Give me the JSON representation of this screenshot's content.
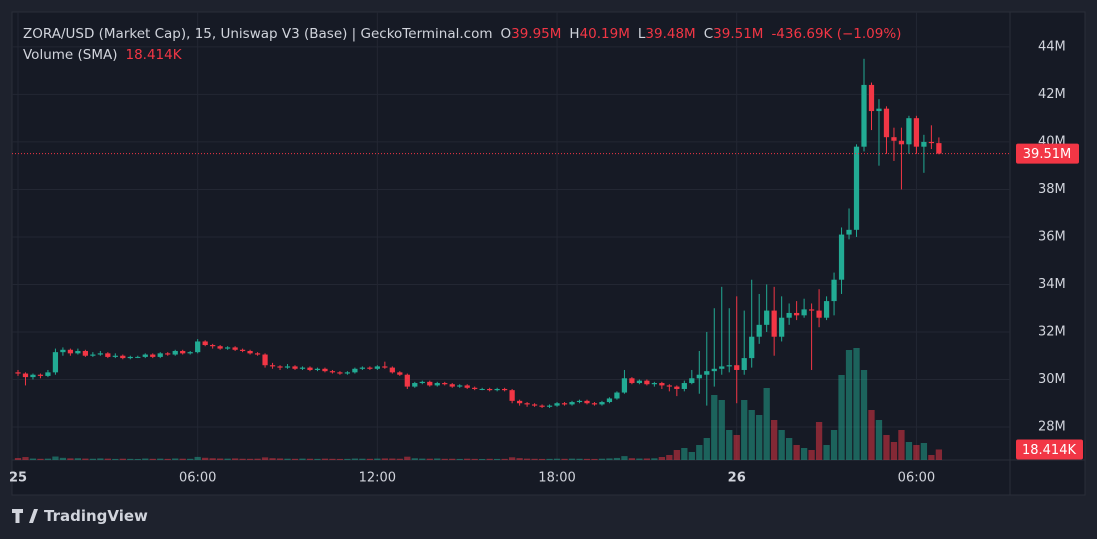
{
  "header": {
    "symbol": "ZORA/USD (Market Cap), 15, Uniswap V3 (Base) | GeckoTerminal.com",
    "ohlc": [
      {
        "key": "O",
        "label": "39.95M"
      },
      {
        "key": "H",
        "label": "40.19M"
      },
      {
        "key": "L",
        "label": "39.48M"
      },
      {
        "key": "C",
        "label": "39.51M"
      }
    ],
    "change": "-436.69K (−1.09%)",
    "volume_title": "Volume (SMA)"
  },
  "footer": {
    "brand": "TradingView"
  },
  "chart_data": {
    "type": "candlestick",
    "xlim": [
      -0.8,
      132.5
    ],
    "xticks": [
      {
        "value": 0,
        "label": "25"
      },
      {
        "value": 24,
        "label": "06:00"
      },
      {
        "value": 48,
        "label": "12:00"
      },
      {
        "value": 72,
        "label": "18:00"
      },
      {
        "value": 96,
        "label": "26"
      },
      {
        "value": 120,
        "label": "06:00"
      }
    ],
    "ylim": [
      26.61,
      45.47
    ],
    "yticks": [
      {
        "value": 28,
        "label": "28M"
      },
      {
        "value": 30,
        "label": "30M"
      },
      {
        "value": 32,
        "label": "32M"
      },
      {
        "value": 34,
        "label": "34M"
      },
      {
        "value": 36,
        "label": "36M"
      },
      {
        "value": 38,
        "label": "38M"
      },
      {
        "value": 40,
        "label": "40M"
      },
      {
        "value": 42,
        "label": "42M"
      },
      {
        "value": 44,
        "label": "44M"
      }
    ],
    "vlim": [
      0,
      420000
    ],
    "grid": true,
    "up_color": "#22ab94",
    "down_color": "#f23645",
    "open": [
      30.3,
      30.25,
      30.1,
      30.2,
      30.15,
      30.3,
      31.15,
      31.25,
      31.1,
      31.2,
      31.0,
      31.05,
      31.1,
      30.95,
      31.0,
      30.9,
      30.95,
      30.95,
      31.05,
      30.95,
      31.1,
      31.05,
      31.2,
      31.1,
      31.15,
      31.6,
      31.45,
      31.4,
      31.3,
      31.35,
      31.25,
      31.2,
      31.1,
      31.05,
      30.6,
      30.55,
      30.5,
      30.55,
      30.45,
      30.5,
      30.4,
      30.45,
      30.35,
      30.3,
      30.25,
      30.3,
      30.45,
      30.5,
      30.45,
      30.55,
      30.5,
      30.3,
      30.2,
      29.7,
      29.85,
      29.9,
      29.75,
      29.85,
      29.8,
      29.7,
      29.75,
      29.65,
      29.6,
      29.6,
      29.55,
      29.6,
      29.55,
      29.1,
      29.0,
      28.95,
      28.9,
      28.85,
      28.9,
      29.0,
      28.95,
      29.05,
      29.1,
      29.0,
      28.95,
      29.05,
      29.2,
      29.45,
      30.05,
      29.85,
      29.95,
      29.8,
      29.85,
      29.75,
      29.7,
      29.6,
      29.85,
      30.05,
      30.2,
      30.35,
      30.45,
      30.55,
      30.6,
      30.4,
      30.9,
      31.8,
      32.3,
      32.9,
      31.8,
      32.6,
      32.8,
      32.7,
      32.95,
      32.9,
      32.6,
      33.3,
      34.2,
      36.1,
      36.3,
      39.8,
      42.4,
      41.3,
      41.4,
      40.2,
      40.05,
      39.9,
      41.0,
      39.8,
      40.0,
      39.95
    ],
    "high": [
      30.4,
      30.3,
      30.25,
      30.25,
      30.4,
      31.3,
      31.35,
      31.3,
      31.3,
      31.25,
      31.15,
      31.2,
      31.15,
      31.1,
      31.05,
      31.0,
      31.0,
      31.1,
      31.1,
      31.15,
      31.15,
      31.25,
      31.25,
      31.2,
      31.7,
      31.65,
      31.5,
      31.45,
      31.4,
      31.4,
      31.3,
      31.25,
      31.15,
      31.1,
      30.7,
      30.6,
      30.65,
      30.6,
      30.55,
      30.55,
      30.5,
      30.5,
      30.4,
      30.35,
      30.35,
      30.5,
      30.55,
      30.55,
      30.6,
      30.75,
      30.55,
      30.35,
      30.25,
      29.9,
      29.95,
      29.95,
      29.9,
      29.9,
      29.85,
      29.8,
      29.8,
      29.7,
      29.65,
      29.65,
      29.65,
      29.65,
      29.6,
      29.15,
      29.05,
      29.0,
      28.95,
      28.95,
      29.05,
      29.05,
      29.1,
      29.15,
      29.15,
      29.05,
      29.1,
      29.25,
      29.5,
      30.4,
      30.1,
      30.0,
      30.0,
      29.9,
      29.9,
      29.8,
      29.75,
      29.95,
      30.4,
      31.2,
      32.0,
      33.0,
      33.9,
      33.0,
      33.5,
      32.9,
      34.2,
      33.6,
      34.0,
      33.9,
      33.5,
      33.2,
      33.3,
      33.4,
      33.2,
      33.8,
      33.5,
      34.5,
      36.4,
      37.2,
      39.9,
      43.5,
      42.5,
      41.8,
      41.5,
      40.6,
      40.6,
      41.1,
      41.1,
      40.3,
      40.7,
      40.19
    ],
    "low": [
      30.15,
      29.75,
      30.0,
      30.05,
      30.1,
      30.2,
      31.0,
      31.0,
      31.05,
      30.95,
      30.95,
      31.0,
      30.9,
      30.9,
      30.85,
      30.85,
      30.9,
      30.9,
      30.9,
      30.9,
      31.0,
      31.0,
      31.05,
      31.05,
      31.1,
      31.4,
      31.3,
      31.25,
      31.25,
      31.2,
      31.15,
      31.05,
      31.0,
      30.5,
      30.45,
      30.4,
      30.45,
      30.4,
      30.4,
      30.35,
      30.35,
      30.3,
      30.25,
      30.2,
      30.2,
      30.25,
      30.4,
      30.4,
      30.4,
      30.45,
      30.25,
      30.15,
      29.6,
      29.65,
      29.8,
      29.7,
      29.7,
      29.75,
      29.65,
      29.65,
      29.6,
      29.55,
      29.55,
      29.5,
      29.5,
      29.5,
      29.0,
      28.9,
      28.85,
      28.85,
      28.8,
      28.8,
      28.85,
      28.9,
      28.9,
      29.0,
      28.95,
      28.9,
      28.9,
      29.0,
      29.15,
      29.4,
      29.8,
      29.8,
      29.75,
      29.7,
      29.6,
      29.5,
      29.3,
      29.5,
      29.8,
      29.4,
      28.9,
      29.7,
      30.2,
      30.3,
      29.0,
      30.2,
      30.5,
      31.5,
      32.0,
      31.0,
      31.6,
      32.3,
      32.5,
      32.6,
      30.4,
      32.2,
      32.5,
      32.7,
      33.6,
      35.9,
      36.0,
      39.6,
      40.5,
      39.0,
      39.5,
      39.2,
      38.0,
      39.5,
      39.5,
      38.7,
      39.7,
      39.48
    ],
    "close": [
      30.25,
      30.1,
      30.2,
      30.15,
      30.3,
      31.15,
      31.25,
      31.1,
      31.2,
      31.0,
      31.05,
      31.1,
      30.95,
      31.0,
      30.9,
      30.95,
      30.95,
      31.05,
      30.95,
      31.1,
      31.05,
      31.2,
      31.1,
      31.15,
      31.6,
      31.45,
      31.4,
      31.3,
      31.35,
      31.25,
      31.2,
      31.1,
      31.05,
      30.6,
      30.55,
      30.5,
      30.55,
      30.45,
      30.5,
      30.4,
      30.45,
      30.35,
      30.3,
      30.25,
      30.3,
      30.45,
      30.5,
      30.45,
      30.55,
      30.5,
      30.3,
      30.2,
      29.7,
      29.85,
      29.9,
      29.75,
      29.85,
      29.8,
      29.7,
      29.75,
      29.65,
      29.6,
      29.6,
      29.55,
      29.6,
      29.55,
      29.1,
      29.0,
      28.95,
      28.9,
      28.85,
      28.9,
      29.0,
      28.95,
      29.05,
      29.1,
      29.0,
      28.95,
      29.05,
      29.2,
      29.45,
      30.05,
      29.85,
      29.95,
      29.8,
      29.85,
      29.75,
      29.7,
      29.6,
      29.85,
      30.05,
      30.2,
      30.35,
      30.45,
      30.55,
      30.6,
      30.4,
      30.9,
      31.8,
      32.3,
      32.9,
      31.8,
      32.6,
      32.8,
      32.7,
      32.95,
      32.9,
      32.6,
      33.3,
      34.2,
      36.1,
      36.3,
      39.8,
      42.4,
      41.3,
      41.4,
      40.2,
      40.05,
      39.9,
      41.0,
      39.8,
      40.0,
      39.95,
      39.51
    ],
    "volume": [
      3500,
      5200,
      2600,
      2100,
      2400,
      6100,
      3800,
      2900,
      3100,
      2500,
      2200,
      2800,
      2400,
      1900,
      2300,
      2000,
      1800,
      2600,
      2100,
      2400,
      2000,
      2700,
      2300,
      2100,
      5400,
      3900,
      3100,
      2600,
      2400,
      2800,
      2200,
      2100,
      2300,
      4600,
      3200,
      2700,
      2300,
      2100,
      2500,
      2200,
      2000,
      2400,
      2100,
      1900,
      2000,
      2600,
      2300,
      2100,
      2500,
      2800,
      2600,
      2200,
      5800,
      3100,
      2500,
      2300,
      2700,
      2100,
      2200,
      1900,
      2300,
      2000,
      1800,
      2100,
      1900,
      2000,
      4700,
      3300,
      2400,
      2100,
      1900,
      2000,
      2300,
      2100,
      2400,
      2200,
      2000,
      1900,
      2300,
      2800,
      3600,
      6800,
      3200,
      2600,
      2700,
      3000,
      5250,
      8750,
      17500,
      21000,
      14000,
      26250,
      38500,
      113750,
      105000,
      52500,
      43750,
      105000,
      87500,
      78750,
      126000,
      70000,
      52500,
      38500,
      26250,
      21000,
      17500,
      66500,
      26250,
      52500,
      148750,
      192500,
      196000,
      157500,
      87500,
      70000,
      43750,
      31500,
      52500,
      31500,
      26250,
      29750,
      8750,
      18414
    ],
    "last_price": {
      "value": 39.51,
      "label": "39.51M"
    },
    "last_volume": {
      "value": 18414,
      "label": "18.414K"
    }
  }
}
